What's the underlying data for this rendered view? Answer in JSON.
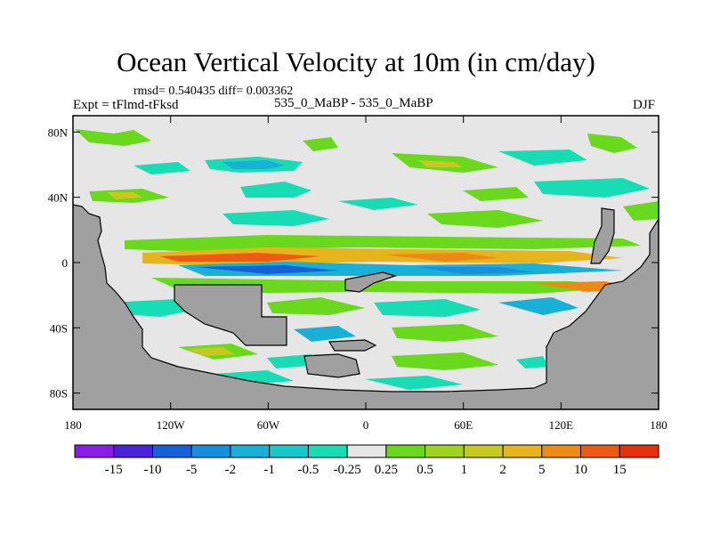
{
  "chart_data": {
    "type": "heatmap",
    "title": "Ocean Vertical Velocity at 10m (in cm/day)",
    "stats_label": "rmsd= 0.540435 diff= 0.003362",
    "experiment_label": "Expt = tFlmd-tFksd",
    "subtitle": "535_0_MaBP - 535_0_MaBP",
    "season": "DJF",
    "units": "cm/day",
    "x_range": [
      -180,
      180
    ],
    "y_range": [
      -90,
      90
    ],
    "x_ticks": [
      {
        "value": -180,
        "label": "180"
      },
      {
        "value": -120,
        "label": "120W"
      },
      {
        "value": -60,
        "label": "60W"
      },
      {
        "value": 0,
        "label": "0"
      },
      {
        "value": 60,
        "label": "60E"
      },
      {
        "value": 120,
        "label": "120E"
      },
      {
        "value": 180,
        "label": "180"
      }
    ],
    "y_ticks": [
      {
        "value": 80,
        "label": "80N"
      },
      {
        "value": 40,
        "label": "40N"
      },
      {
        "value": 0,
        "label": "0"
      },
      {
        "value": -40,
        "label": "40S"
      },
      {
        "value": -80,
        "label": "80S"
      }
    ],
    "colorbar": {
      "levels": [
        "-15",
        "-10",
        "-5",
        "-2",
        "-1",
        "-0.5",
        "-0.25",
        "0.25",
        "0.5",
        "1",
        "2",
        "5",
        "10",
        "15"
      ],
      "colors": [
        "#8a1ee6",
        "#4a22d8",
        "#1660d8",
        "#1690dc",
        "#18b0d6",
        "#18c8cc",
        "#18dcb4",
        "#e6e6e6",
        "#6ad81c",
        "#9ed420",
        "#c8c820",
        "#e6b41c",
        "#ec8a18",
        "#ee5a14",
        "#e63010"
      ]
    },
    "colors": {
      "background": "#e6e6e6",
      "land": "#a0a0a0"
    },
    "features": [
      {
        "name": "NH mid-latitude band",
        "lat_range": [
          20,
          80
        ],
        "pattern": "sparse green and cyan patches near 0.5 / -0.5"
      },
      {
        "name": "Equatorial band",
        "lat_range": [
          -10,
          10
        ],
        "pattern": "strong positive orange/yellow upwelling with negative blue strip just south of equator"
      },
      {
        "name": "Southern Ocean",
        "lat_range": [
          -80,
          -20
        ],
        "pattern": "mixed cyan and green patches, weak magnitudes"
      }
    ]
  }
}
